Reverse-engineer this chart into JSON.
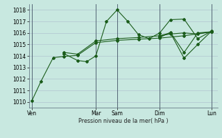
{
  "background_color": "#c8e8e0",
  "grid_color": "#aabbcc",
  "line_color": "#1a5c1a",
  "xlabel": "Pression niveau de la mer( hPa )",
  "ylim": [
    1009.5,
    1018.5
  ],
  "yticks": [
    1010,
    1011,
    1012,
    1013,
    1014,
    1015,
    1016,
    1017,
    1018
  ],
  "xlim": [
    -2,
    122
  ],
  "xtick_positions": [
    0,
    42,
    56,
    84,
    118
  ],
  "xtick_labels": [
    "Ven",
    "Mar",
    "Sam",
    "Dim",
    "Lun"
  ],
  "vlines": [
    0,
    42,
    56,
    84,
    118
  ],
  "series1": {
    "x": [
      0,
      6,
      14,
      21,
      30,
      42,
      56,
      70,
      84,
      100,
      118
    ],
    "y": [
      1010.1,
      1011.8,
      1013.85,
      1013.95,
      1014.05,
      1015.15,
      1015.35,
      1015.45,
      1015.55,
      1015.75,
      1016.1
    ]
  },
  "series2": {
    "x": [
      21,
      30,
      36,
      42,
      49,
      56,
      63,
      70,
      77,
      84,
      91,
      100,
      109,
      118
    ],
    "y": [
      1014.2,
      1013.6,
      1013.5,
      1014.0,
      1017.0,
      1018.0,
      1017.0,
      1015.85,
      1015.5,
      1016.0,
      1017.15,
      1017.2,
      1015.5,
      1016.15
    ]
  },
  "series3": {
    "x": [
      21,
      30,
      42,
      56,
      70,
      84,
      91,
      100,
      109,
      118
    ],
    "y": [
      1014.3,
      1014.15,
      1015.3,
      1015.5,
      1015.6,
      1015.75,
      1015.9,
      1016.0,
      1015.9,
      1016.1
    ]
  },
  "series4": {
    "x": [
      84,
      91,
      100,
      109,
      118
    ],
    "y": [
      1015.75,
      1016.0,
      1013.8,
      1015.0,
      1016.15
    ]
  },
  "series5": {
    "x": [
      84,
      91,
      100,
      109,
      118
    ],
    "y": [
      1015.6,
      1016.05,
      1014.3,
      1016.0,
      1016.1
    ]
  }
}
